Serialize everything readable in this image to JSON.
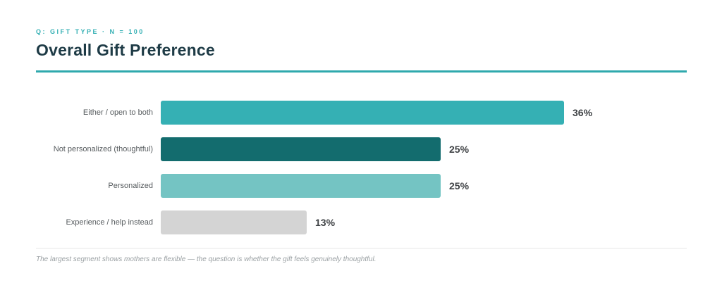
{
  "header": {
    "eyebrow": "Q: GIFT TYPE · N = 100",
    "title": "Overall Gift Preference"
  },
  "chart_data": {
    "type": "bar",
    "orientation": "horizontal",
    "title": "Overall Gift Preference",
    "subtitle": "Q: GIFT TYPE · N = 100",
    "categories": [
      "Either / open to both",
      "Not personalized (thoughtful)",
      "Personalized",
      "Experience / help instead"
    ],
    "values": [
      36,
      25,
      25,
      13
    ],
    "value_labels": [
      "36%",
      "25%",
      "25%",
      "13%"
    ],
    "bar_colors": [
      "#35b0b4",
      "#136c6e",
      "#74c4c3",
      "#d4d4d4"
    ],
    "unit": "%",
    "xlim": [
      0,
      36
    ],
    "grid": false,
    "legend": false,
    "value_label_position": "end-of-bar"
  },
  "footer": {
    "note": "The largest segment shows mothers are flexible — the question is whether the gift feels genuinely thoughtful."
  },
  "colors": {
    "accent_rule": "#2fa9ad",
    "eyebrow_text": "#35b0b4",
    "title_text": "#1e3b46",
    "category_label_text": "#565b5e",
    "value_label_text": "#3f4245",
    "divider": "#e6e6e6",
    "footer_text": "#9aa0a3"
  }
}
